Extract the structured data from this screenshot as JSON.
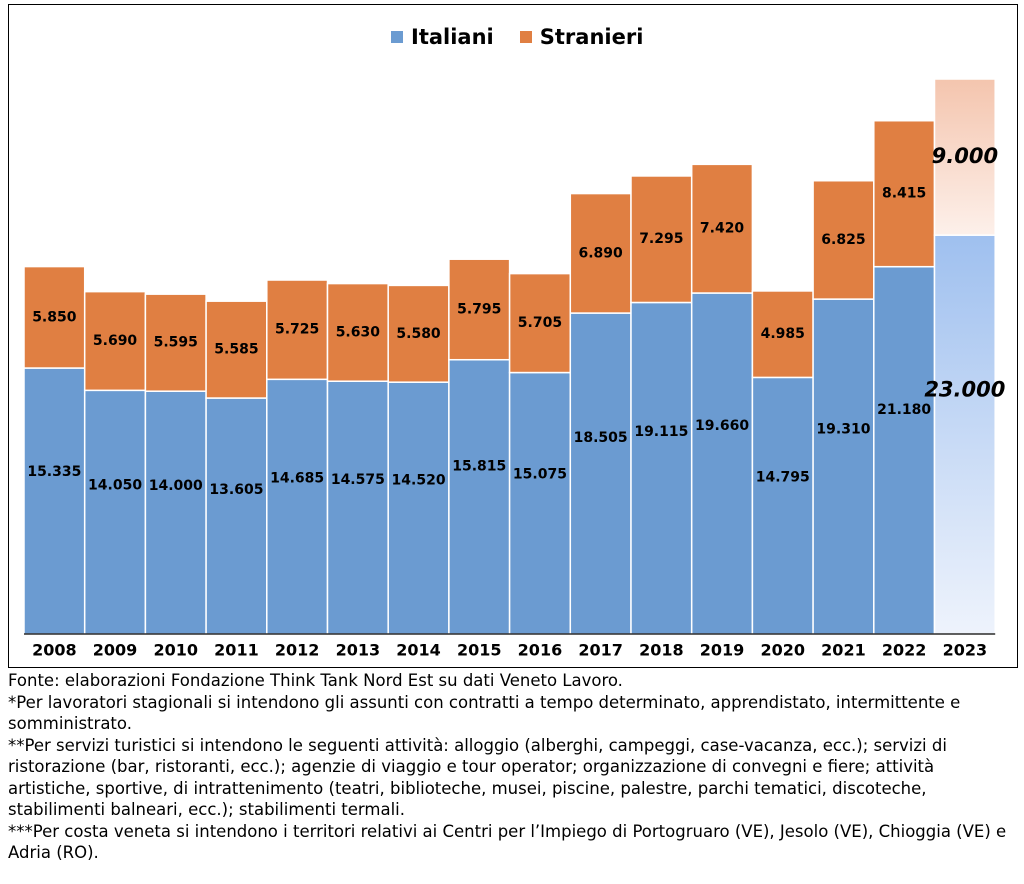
{
  "chart_data": {
    "type": "bar",
    "stacked": true,
    "categories": [
      "2008",
      "2009",
      "2010",
      "2011",
      "2012",
      "2013",
      "2014",
      "2015",
      "2016",
      "2017",
      "2018",
      "2019",
      "2020",
      "2021",
      "2022",
      "2023"
    ],
    "series": [
      {
        "name": "Italiani",
        "color": "#6b9bd1",
        "values": [
          15335,
          14050,
          14000,
          13605,
          14685,
          14575,
          14520,
          15815,
          15075,
          18505,
          19115,
          19660,
          14795,
          19310,
          21180,
          23000
        ],
        "labels": [
          "15.335",
          "14.050",
          "14.000",
          "13.605",
          "14.685",
          "14.575",
          "14.520",
          "15.815",
          "15.075",
          "18.505",
          "19.115",
          "19.660",
          "14.795",
          "19.310",
          "21.180",
          "23.000"
        ]
      },
      {
        "name": "Stranieri",
        "color": "#e07f42",
        "values": [
          5850,
          5690,
          5595,
          5585,
          5725,
          5630,
          5580,
          5795,
          5705,
          6890,
          7295,
          7420,
          4985,
          6825,
          8415,
          9000
        ],
        "labels": [
          "5.850",
          "5.690",
          "5.595",
          "5.585",
          "5.725",
          "5.630",
          "5.580",
          "5.795",
          "5.705",
          "6.890",
          "7.295",
          "7.420",
          "4.985",
          "6.825",
          "8.415",
          "9.000"
        ]
      }
    ],
    "forecast_category": "2023",
    "ylim": [
      0,
      33500
    ],
    "grid": false,
    "legend_position": "top-center"
  },
  "legend": {
    "italiani": "Italiani",
    "stranieri": "Stranieri"
  },
  "notes": {
    "fonte": "Fonte: elaborazioni Fondazione Think Tank Nord Est su dati Veneto Lavoro.",
    "note1": "*Per lavoratori stagionali si intendono gli assunti con contratti a tempo determinato, apprendistato, intermittente e somministrato.",
    "note2": "**Per servizi turistici si intendono le seguenti attività: alloggio (alberghi, campeggi, case-vacanza, ecc.); servizi di ristorazione (bar, ristoranti, ecc.); agenzie di viaggio e tour operator; organizzazione di convegni e fiere; attività artistiche, sportive, di intrattenimento (teatri, biblioteche, musei, piscine, palestre, parchi tematici, discoteche, stabilimenti balneari, ecc.); stabilimenti termali.",
    "note3": "***Per costa veneta si intendono i territori relativi ai Centri per l’Impiego di Portogruaro (VE), Jesolo (VE), Chioggia (VE) e Adria (RO)."
  }
}
